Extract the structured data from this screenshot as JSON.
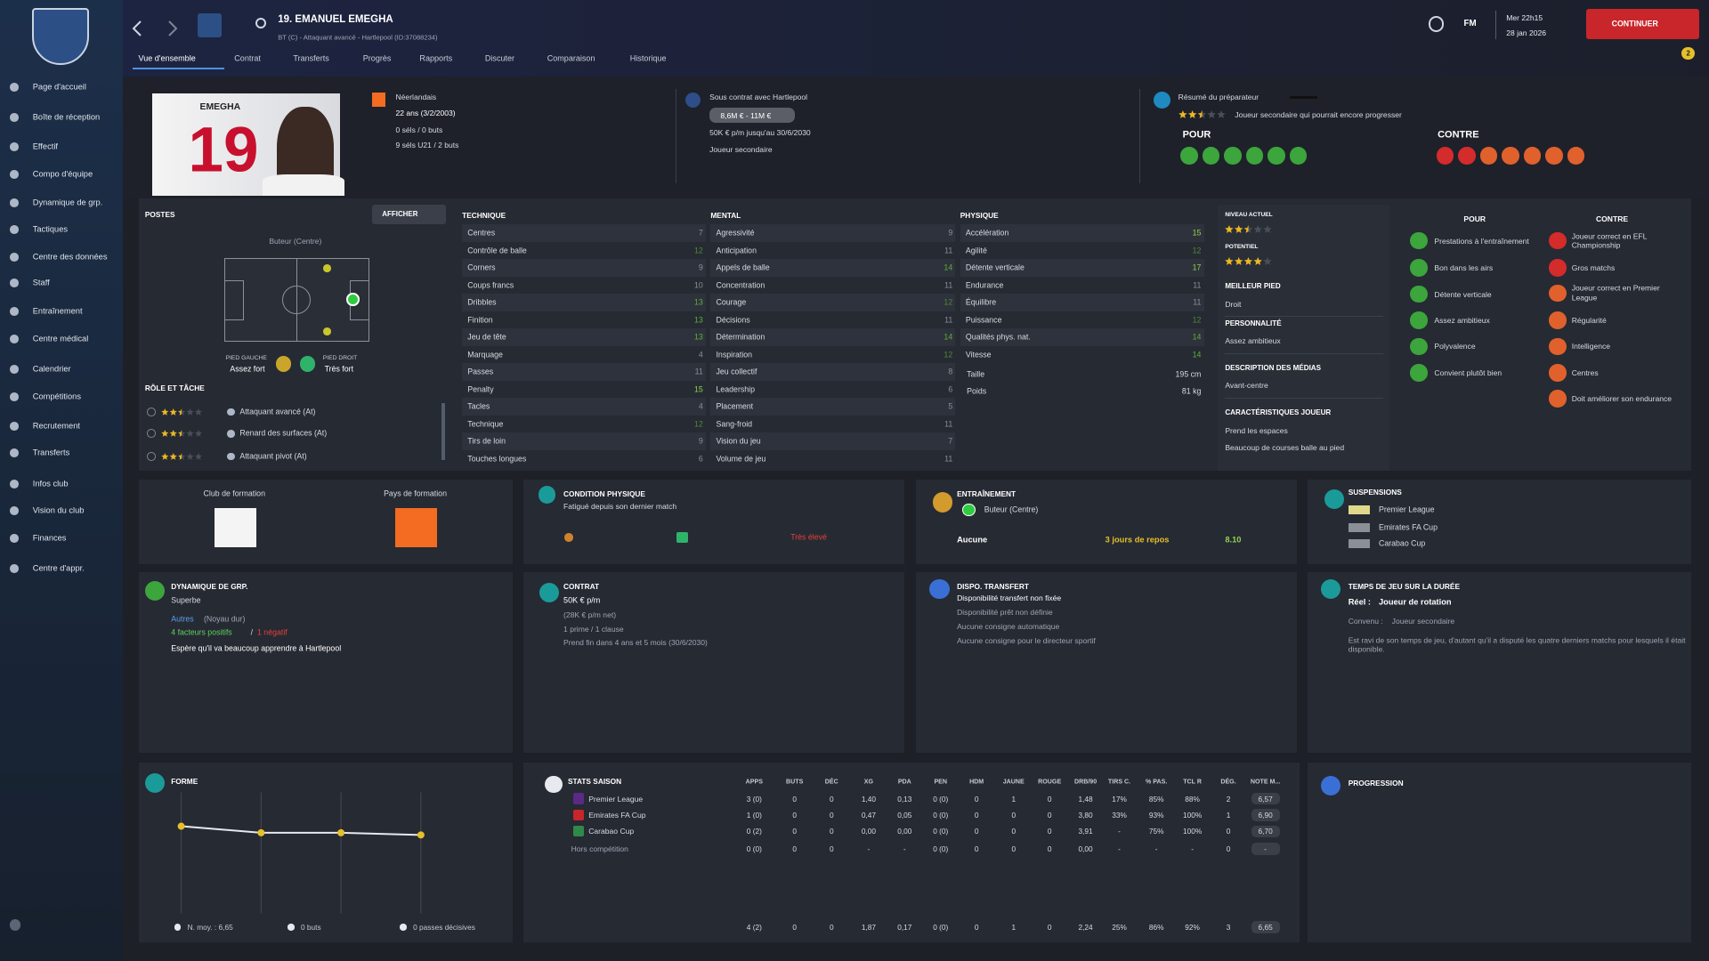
{
  "sidebar": {
    "items": [
      "Page d'accueil",
      "Boîte de réception",
      "Effectif",
      "Compo d'équipe",
      "Dynamique de grp.",
      "Tactiques",
      "Centre des données",
      "Staff",
      "Entraînement",
      "Centre médical",
      "Calendrier",
      "Compétitions",
      "Recrutement",
      "Transferts",
      "Infos club",
      "Vision du club",
      "Finances",
      "Centre d'appr."
    ]
  },
  "header": {
    "title": "19. EMANUEL EMEGHA",
    "subtitle": "BT (C) - Attaquant avancé - Hartlepool (ID:37088234)",
    "brand": "FM",
    "day": "Mer 22h15",
    "date": "28 jan 2026",
    "continue": "CONTINUER",
    "notifications": "2",
    "tabs": [
      "Vue d'ensemble",
      "Contrat",
      "Transferts",
      "Progrès",
      "Rapports",
      "Discuter",
      "Comparaison",
      "Historique"
    ]
  },
  "profile": {
    "shirt_name": "EMEGHA",
    "shirt_number": "19",
    "nationality": "Néerlandais",
    "age": "22 ans (3/2/2003)",
    "caps": "0 séls / 0 buts",
    "u21_caps": "9 séls U21 / 2 buts",
    "contract_title": "Sous contrat avec Hartlepool",
    "value": "8,6M € - 11M €",
    "wage": "50K € p/m jusqu'au 30/6/2030",
    "status": "Joueur secondaire",
    "scout_title": "Résumé du préparateur",
    "scout_stars": 2.5,
    "scout_text": "Joueur secondaire qui pourrait encore progresser",
    "pros_title": "POUR",
    "cons_title": "CONTRE"
  },
  "positions": {
    "title": "POSTES",
    "button": "AFFICHER",
    "position": "Buteur (Centre)",
    "left_foot_label": "PIED GAUCHE",
    "left_foot": "Assez fort",
    "right_foot_label": "PIED DROIT",
    "right_foot": "Très fort",
    "roles_title": "RÔLE ET TÂCHE",
    "roles": [
      {
        "name": "Attaquant avancé (At)",
        "stars": 2.5
      },
      {
        "name": "Renard des surfaces (At)",
        "stars": 2.5
      },
      {
        "name": "Attaquant pivot (At)",
        "stars": 2.5
      }
    ]
  },
  "attributes": {
    "groups": [
      {
        "title": "TECHNIQUE",
        "items": [
          {
            "name": "Centres",
            "value": 7
          },
          {
            "name": "Contrôle de balle",
            "value": 12
          },
          {
            "name": "Corners",
            "value": 9
          },
          {
            "name": "Coups francs",
            "value": 10
          },
          {
            "name": "Dribbles",
            "value": 13
          },
          {
            "name": "Finition",
            "value": 13
          },
          {
            "name": "Jeu de tête",
            "value": 13
          },
          {
            "name": "Marquage",
            "value": 4
          },
          {
            "name": "Passes",
            "value": 11
          },
          {
            "name": "Penalty",
            "value": 15
          },
          {
            "name": "Tacles",
            "value": 4
          },
          {
            "name": "Technique",
            "value": 12
          },
          {
            "name": "Tirs de loin",
            "value": 9
          },
          {
            "name": "Touches longues",
            "value": 6
          }
        ]
      },
      {
        "title": "MENTAL",
        "items": [
          {
            "name": "Agressivité",
            "value": 9
          },
          {
            "name": "Anticipation",
            "value": 11
          },
          {
            "name": "Appels de balle",
            "value": 14
          },
          {
            "name": "Concentration",
            "value": 11
          },
          {
            "name": "Courage",
            "value": 12
          },
          {
            "name": "Décisions",
            "value": 11
          },
          {
            "name": "Détermination",
            "value": 14
          },
          {
            "name": "Inspiration",
            "value": 12
          },
          {
            "name": "Jeu collectif",
            "value": 8
          },
          {
            "name": "Leadership",
            "value": 6
          },
          {
            "name": "Placement",
            "value": 5
          },
          {
            "name": "Sang-froid",
            "value": 11
          },
          {
            "name": "Vision du jeu",
            "value": 7
          },
          {
            "name": "Volume de jeu",
            "value": 11
          }
        ]
      },
      {
        "title": "PHYSIQUE",
        "items": [
          {
            "name": "Accélération",
            "value": 15
          },
          {
            "name": "Agilité",
            "value": 12
          },
          {
            "name": "Détente verticale",
            "value": 17
          },
          {
            "name": "Endurance",
            "value": 11
          },
          {
            "name": "Équilibre",
            "value": 11
          },
          {
            "name": "Puissance",
            "value": 12
          },
          {
            "name": "Qualités phys. nat.",
            "value": 14
          },
          {
            "name": "Vitesse",
            "value": 14
          }
        ]
      }
    ],
    "height_label": "Taille",
    "height": "195 cm",
    "weight_label": "Poids",
    "weight": "81 kg"
  },
  "summary": {
    "current_label": "NIVEAU ACTUEL",
    "current_stars": 2.5,
    "potential_label": "POTENTIEL",
    "potential_stars": 4,
    "sections": [
      {
        "title": "MEILLEUR PIED",
        "lines": [
          "Droit"
        ]
      },
      {
        "title": "PERSONNALITÉ",
        "lines": [
          "Assez ambitieux"
        ]
      },
      {
        "title": "DESCRIPTION DES MÉDIAS",
        "lines": [
          "Avant-centre"
        ]
      },
      {
        "title": "CARACTÉRISTIQUES JOUEUR",
        "lines": [
          "Prend les espaces",
          "Beaucoup de courses balle au pied"
        ]
      }
    ]
  },
  "traits": {
    "pros_title": "POUR",
    "cons_title": "CONTRE",
    "pros": [
      "Prestations à l'entraînement",
      "Bon dans les airs",
      "Détente verticale",
      "Assez ambitieux",
      "Polyvalence",
      "Convient plutôt bien"
    ],
    "cons": [
      "Joueur correct en EFL Championship",
      "Gros matchs",
      "Joueur correct en Premier League",
      "Régularité",
      "Intelligence",
      "Centres",
      "Doit améliorer son endurance"
    ]
  },
  "formation": {
    "club_label": "Club de formation",
    "country_label": "Pays de formation"
  },
  "condition": {
    "title": "CONDITION PHYSIQUE",
    "text": "Fatigué depuis son dernier match",
    "risk": "Très élevé"
  },
  "training": {
    "title": "ENTRAÎNEMENT",
    "position": "Buteur (Centre)",
    "focus": "Aucune",
    "rest": "3 jours de repos",
    "rating": "8.10"
  },
  "suspensions": {
    "title": "SUSPENSIONS",
    "competitions": [
      "Premier League",
      "Emirates FA Cup",
      "Carabao Cup"
    ]
  },
  "dynamics": {
    "title": "DYNAMIQUE DE GRP.",
    "status": "Superbe",
    "group": "Autres",
    "group_note": "(Noyau dur)",
    "positive": "4 facteurs positifs",
    "separator": "/",
    "negative": "1 négatif",
    "text": "Espère qu'il va beaucoup apprendre à Hartlepool"
  },
  "contract": {
    "title": "CONTRAT",
    "wage": "50K € p/m",
    "net": "(28K € p/m net)",
    "bonuses": "1 prime / 1 clause",
    "expiry": "Prend fin dans 4 ans et 5 mois (30/6/2030)"
  },
  "transfer": {
    "title": "DISPO. TRANSFERT",
    "lines": [
      "Disponibilité transfert non fixée",
      "Disponibilité prêt non définie",
      "Aucune consigne automatique",
      "Aucune consigne pour le directeur sportif"
    ]
  },
  "playing_time": {
    "title": "TEMPS DE JEU SUR LA DURÉE",
    "real_label": "Réel :",
    "real": "Joueur de rotation",
    "agreed_label": "Convenu :",
    "agreed": "Joueur secondaire",
    "text": "Est ravi de son temps de jeu, d'autant qu'il a disputé les quatre derniers matchs pour lesquels il était disponible."
  },
  "form": {
    "title": "FORME",
    "values": [
      6.9,
      6.6,
      6.6,
      6.5
    ],
    "average": "N. moy. : 6,65",
    "goals": "0 buts",
    "assists": "0 passes décisives"
  },
  "stats": {
    "title": "STATS SAISON",
    "headers": [
      "APPS",
      "BUTS",
      "DÉC",
      "XG",
      "PDA",
      "PEN",
      "HDM",
      "JAUNE",
      "ROUGE",
      "DRB/90",
      "TIRS C.",
      "% PAS.",
      "TCL R",
      "DÉG.",
      "NOTE M..."
    ],
    "rows": [
      {
        "name": "Premier League",
        "cells": [
          "3 (0)",
          "0",
          "0",
          "1,40",
          "0,13",
          "0 (0)",
          "0",
          "1",
          "0",
          "1,48",
          "17%",
          "85%",
          "88%",
          "2",
          "6,57"
        ]
      },
      {
        "name": "Emirates FA Cup",
        "cells": [
          "1 (0)",
          "0",
          "0",
          "0,47",
          "0,05",
          "0 (0)",
          "0",
          "0",
          "0",
          "3,80",
          "33%",
          "93%",
          "100%",
          "1",
          "6,90"
        ]
      },
      {
        "name": "Carabao Cup",
        "cells": [
          "0 (2)",
          "0",
          "0",
          "0,00",
          "0,00",
          "0 (0)",
          "0",
          "0",
          "0",
          "3,91",
          "-",
          "75%",
          "100%",
          "0",
          "6,70"
        ]
      },
      {
        "name": "Hors compétition",
        "cells": [
          "0 (0)",
          "0",
          "0",
          "-",
          "-",
          "0 (0)",
          "0",
          "0",
          "0",
          "0,00",
          "-",
          "-",
          "-",
          "0",
          "-"
        ]
      }
    ],
    "total": [
      "4 (2)",
      "0",
      "0",
      "1,87",
      "0,17",
      "0 (0)",
      "0",
      "1",
      "0",
      "2,24",
      "25%",
      "86%",
      "92%",
      "3",
      "6,65"
    ]
  },
  "progression": {
    "title": "PROGRESSION"
  }
}
